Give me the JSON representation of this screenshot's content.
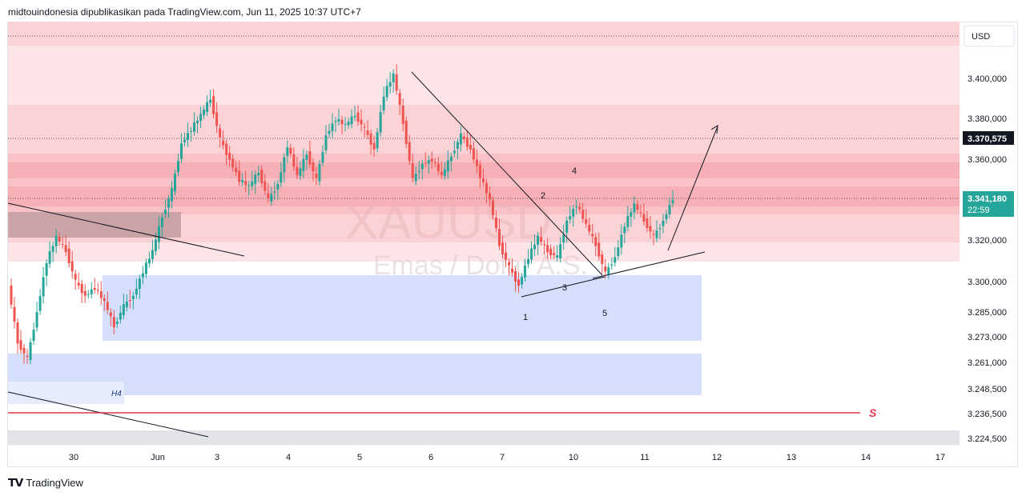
{
  "header": {
    "publish_line": "midtouindonesia dipublikasikan pada TradingView.com, Jun 11, 2025 10:37 UTC+7"
  },
  "footer": {
    "logo_icon": "tradingview-logo-icon",
    "brand": "TradingView"
  },
  "watermark": {
    "symbol": "XAUUSD",
    "description": "Emas / Dolar A.S."
  },
  "price_axis": {
    "currency": "USD",
    "ticks": [
      "3.400,000",
      "3.380,000",
      "3.360,000",
      "3.320,000",
      "3.300,000",
      "3.285,000",
      "3.273,000",
      "3.261,000",
      "3.248,500",
      "3.236,500",
      "3.224,500"
    ],
    "marker_level": "3.370,575",
    "last_price": "3.341,180",
    "countdown": "22:59"
  },
  "time_axis": {
    "ticks": [
      "30",
      "Jun",
      "3",
      "4",
      "5",
      "6",
      "7",
      "10",
      "11",
      "12",
      "13",
      "14",
      "17"
    ]
  },
  "annotations": {
    "wave_labels": [
      "1",
      "2",
      "3",
      "4",
      "5"
    ],
    "zone_label": "H4",
    "sell_line_label": "S"
  },
  "colors": {
    "bullish": "#26a69a",
    "bearish": "#ef5350",
    "supply_zone": "#f7b5b9",
    "demand_zone": "#bbcdfa",
    "sell_line": "#e0354a"
  },
  "chart_data": {
    "type": "candlestick",
    "symbol": "XAUUSD",
    "timeframe_zone_label": "H4",
    "x_categories": [
      "30",
      "Jun",
      "3",
      "4",
      "5",
      "6",
      "7",
      "10",
      "11",
      "12",
      "13",
      "14",
      "17"
    ],
    "y_ticks": [
      3400.0,
      3380.0,
      3360.0,
      3320.0,
      3300.0,
      3285.0,
      3273.0,
      3261.0,
      3248.5,
      3236.5,
      3224.5
    ],
    "last_price": 3341.18,
    "marked_level": 3370.575,
    "sell_line_level": 3236.5,
    "price_path": [
      3298,
      3270,
      3262,
      3285,
      3310,
      3322,
      3315,
      3300,
      3293,
      3297,
      3290,
      3278,
      3288,
      3293,
      3305,
      3315,
      3332,
      3345,
      3368,
      3375,
      3382,
      3390,
      3370,
      3360,
      3350,
      3347,
      3354,
      3340,
      3348,
      3367,
      3352,
      3363,
      3350,
      3372,
      3380,
      3377,
      3382,
      3375,
      3365,
      3392,
      3402,
      3378,
      3350,
      3358,
      3360,
      3352,
      3362,
      3372,
      3365,
      3352,
      3340,
      3318,
      3307,
      3298,
      3312,
      3322,
      3315,
      3312,
      3330,
      3338,
      3328,
      3318,
      3304,
      3312,
      3328,
      3338,
      3330,
      3322,
      3330,
      3341
    ]
  }
}
